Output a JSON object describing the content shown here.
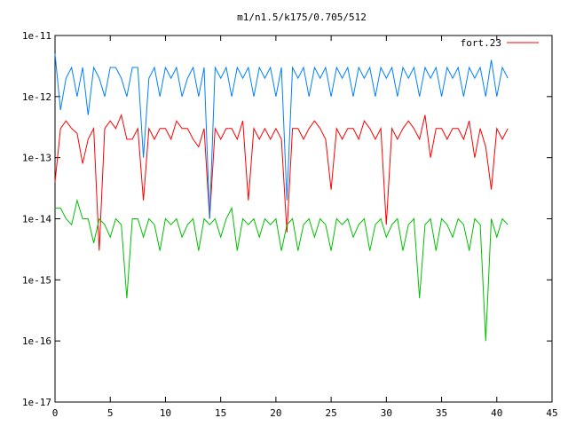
{
  "chart_data": {
    "type": "line",
    "title": "m1/n1.5/k175/0.705/512",
    "xlabel": "",
    "ylabel": "",
    "xlim": [
      0,
      45
    ],
    "ylim": [
      1e-17,
      1e-11
    ],
    "y_scale": "log",
    "x_ticks": [
      0,
      5,
      10,
      15,
      20,
      25,
      30,
      35,
      40,
      45
    ],
    "x_tick_labels": [
      "0",
      "5",
      "10",
      "15",
      "20",
      "25",
      "30",
      "35",
      "40",
      "45"
    ],
    "y_ticks": [
      1e-17,
      1e-16,
      1e-15,
      1e-14,
      1e-13,
      1e-12,
      1e-11
    ],
    "y_tick_labels": [
      "1e-17",
      "1e-16",
      "1e-15",
      "1e-14",
      "1e-13",
      "1e-12",
      "1e-11"
    ],
    "grid": false,
    "legend_position": "top-right",
    "series": [
      {
        "name": "fort.23",
        "color": "#ff0000",
        "x": [
          0,
          0.5,
          1,
          1.5,
          2,
          2.5,
          3,
          3.5,
          4,
          4.5,
          5,
          5.5,
          6,
          6.5,
          7,
          7.5,
          8,
          8.5,
          9,
          9.5,
          10,
          10.5,
          11,
          11.5,
          12,
          12.5,
          13,
          13.5,
          14,
          14.5,
          15,
          15.5,
          16,
          16.5,
          17,
          17.5,
          18,
          18.5,
          19,
          19.5,
          20,
          20.5,
          21,
          21.5,
          22,
          22.5,
          23,
          23.5,
          24,
          24.5,
          25,
          25.5,
          26,
          26.5,
          27,
          27.5,
          28,
          28.5,
          29,
          29.5,
          30,
          30.5,
          31,
          31.5,
          32,
          32.5,
          33,
          33.5,
          34,
          34.5,
          35,
          35.5,
          36,
          36.5,
          37,
          37.5,
          38,
          38.5,
          39,
          39.5,
          40,
          40.5,
          41
        ],
        "values": [
          4e-14,
          3e-13,
          4e-13,
          3e-13,
          2.5e-13,
          8e-14,
          2e-13,
          3e-13,
          3e-15,
          3e-13,
          4e-13,
          3e-13,
          5e-13,
          2e-13,
          2e-13,
          3e-13,
          2e-14,
          3e-13,
          2e-13,
          3e-13,
          3e-13,
          2e-13,
          4e-13,
          3e-13,
          3e-13,
          2e-13,
          1.5e-13,
          3e-13,
          1e-14,
          3e-13,
          2e-13,
          3e-13,
          3e-13,
          2e-13,
          4e-13,
          2e-14,
          3e-13,
          2e-13,
          3e-13,
          2e-13,
          3e-13,
          2e-13,
          6e-15,
          3e-13,
          3e-13,
          2e-13,
          3e-13,
          4e-13,
          3e-13,
          2e-13,
          3e-14,
          3e-13,
          2e-13,
          3e-13,
          3e-13,
          2e-13,
          4e-13,
          3e-13,
          2e-13,
          3e-13,
          8e-15,
          3e-13,
          2e-13,
          3e-13,
          4e-13,
          3e-13,
          2e-13,
          5e-13,
          1e-13,
          3e-13,
          3e-13,
          2e-13,
          3e-13,
          3e-13,
          2e-13,
          4e-13,
          1e-13,
          3e-13,
          1.5e-13,
          3e-14,
          3e-13,
          2e-13,
          3e-13
        ]
      },
      {
        "name": "",
        "color": "#0080ff",
        "x": [
          0,
          0.5,
          1,
          1.5,
          2,
          2.5,
          3,
          3.5,
          4,
          4.5,
          5,
          5.5,
          6,
          6.5,
          7,
          7.5,
          8,
          8.5,
          9,
          9.5,
          10,
          10.5,
          11,
          11.5,
          12,
          12.5,
          13,
          13.5,
          14,
          14.5,
          15,
          15.5,
          16,
          16.5,
          17,
          17.5,
          18,
          18.5,
          19,
          19.5,
          20,
          20.5,
          21,
          21.5,
          22,
          22.5,
          23,
          23.5,
          24,
          24.5,
          25,
          25.5,
          26,
          26.5,
          27,
          27.5,
          28,
          28.5,
          29,
          29.5,
          30,
          30.5,
          31,
          31.5,
          32,
          32.5,
          33,
          33.5,
          34,
          34.5,
          35,
          35.5,
          36,
          36.5,
          37,
          37.5,
          38,
          38.5,
          39,
          39.5,
          40,
          40.5,
          41
        ],
        "values": [
          5e-12,
          6e-13,
          2e-12,
          3e-12,
          1e-12,
          3e-12,
          5e-13,
          3e-12,
          2e-12,
          1e-12,
          3e-12,
          3e-12,
          2e-12,
          1e-12,
          3e-12,
          3e-12,
          1e-13,
          2e-12,
          3e-12,
          1e-12,
          3e-12,
          2e-12,
          3e-12,
          1e-12,
          2e-12,
          3e-12,
          1e-12,
          3e-12,
          1e-14,
          3e-12,
          2e-12,
          3e-12,
          1e-12,
          3e-12,
          2e-12,
          3e-12,
          1e-12,
          3e-12,
          2e-12,
          3e-12,
          1e-12,
          3e-12,
          2e-14,
          3e-12,
          2e-12,
          3e-12,
          1e-12,
          3e-12,
          2e-12,
          3e-12,
          1e-12,
          3e-12,
          2e-12,
          3e-12,
          1e-12,
          3e-12,
          2e-12,
          3e-12,
          1e-12,
          3e-12,
          2e-12,
          3e-12,
          1e-12,
          3e-12,
          2e-12,
          3e-12,
          1e-12,
          3e-12,
          2e-12,
          3e-12,
          1e-12,
          3e-12,
          2e-12,
          3e-12,
          1e-12,
          3e-12,
          2e-12,
          3e-12,
          1e-12,
          4e-12,
          1e-12,
          3e-12,
          2e-12
        ]
      },
      {
        "name": "",
        "color": "#00c000",
        "x": [
          0,
          0.5,
          1,
          1.5,
          2,
          2.5,
          3,
          3.5,
          4,
          4.5,
          5,
          5.5,
          6,
          6.5,
          7,
          7.5,
          8,
          8.5,
          9,
          9.5,
          10,
          10.5,
          11,
          11.5,
          12,
          12.5,
          13,
          13.5,
          14,
          14.5,
          15,
          15.5,
          16,
          16.5,
          17,
          17.5,
          18,
          18.5,
          19,
          19.5,
          20,
          20.5,
          21,
          21.5,
          22,
          22.5,
          23,
          23.5,
          24,
          24.5,
          25,
          25.5,
          26,
          26.5,
          27,
          27.5,
          28,
          28.5,
          29,
          29.5,
          30,
          30.5,
          31,
          31.5,
          32,
          32.5,
          33,
          33.5,
          34,
          34.5,
          35,
          35.5,
          36,
          36.5,
          37,
          37.5,
          38,
          38.5,
          39,
          39.5,
          40,
          40.5,
          41
        ],
        "values": [
          1.5e-14,
          1.5e-14,
          1e-14,
          8e-15,
          2e-14,
          1e-14,
          1e-14,
          4e-15,
          1e-14,
          8e-15,
          5e-15,
          1e-14,
          8e-15,
          5e-16,
          1e-14,
          1e-14,
          5e-15,
          1e-14,
          8e-15,
          3e-15,
          1e-14,
          8e-15,
          1e-14,
          5e-15,
          8e-15,
          1e-14,
          3e-15,
          1e-14,
          8e-15,
          1e-14,
          5e-15,
          1e-14,
          1.5e-14,
          3e-15,
          1e-14,
          8e-15,
          1e-14,
          5e-15,
          1e-14,
          8e-15,
          1e-14,
          3e-15,
          8e-15,
          1e-14,
          3e-15,
          8e-15,
          1e-14,
          5e-15,
          1e-14,
          8e-15,
          3e-15,
          1e-14,
          8e-15,
          1e-14,
          5e-15,
          8e-15,
          1e-14,
          3e-15,
          8e-15,
          1e-14,
          5e-15,
          8e-15,
          1e-14,
          3e-15,
          8e-15,
          1e-14,
          5e-16,
          8e-15,
          1e-14,
          3e-15,
          1e-14,
          8e-15,
          5e-15,
          1e-14,
          8e-15,
          3e-15,
          1e-14,
          8e-15,
          1e-16,
          1e-14,
          5e-15,
          1e-14,
          8e-15
        ]
      }
    ]
  }
}
